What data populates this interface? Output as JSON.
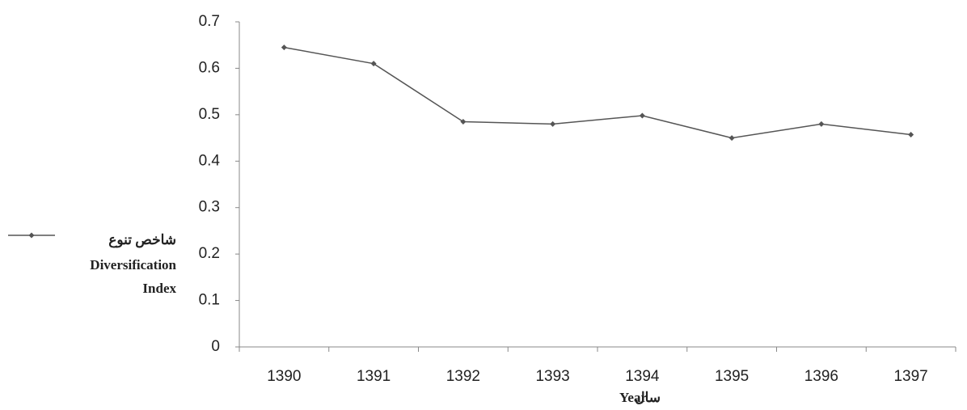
{
  "chart_data": {
    "type": "line",
    "categories": [
      "1390",
      "1391",
      "1392",
      "1393",
      "1394",
      "1395",
      "1396",
      "1397"
    ],
    "series": [
      {
        "name": "شاخص تنوع",
        "name_translation": [
          "Diversification",
          "Index"
        ],
        "color": "#555555",
        "values": [
          0.645,
          0.61,
          0.485,
          0.48,
          0.498,
          0.45,
          0.48,
          0.457
        ]
      }
    ],
    "ylim": [
      0,
      0.7
    ],
    "yticks": [
      0,
      0.1,
      0.2,
      0.3,
      0.4,
      0.5,
      0.6,
      0.7
    ],
    "xlabel": "Year",
    "xlabel_fa": "سال",
    "legend": "left"
  }
}
